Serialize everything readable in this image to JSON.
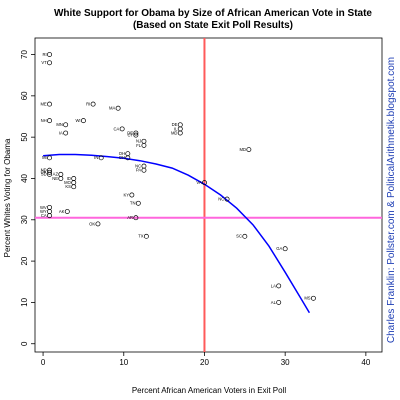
{
  "chart_data": {
    "type": "scatter",
    "title": "White Support for Obama by Size of African American Vote in State",
    "subtitle": "(Based on State Exit Poll Results)",
    "xlabel": "Percent African American Voters in Exit Poll",
    "ylabel": "Percent Whites Voting for Obama",
    "xlim": [
      -1,
      42
    ],
    "ylim": [
      -2,
      74
    ],
    "xticks": [
      "0",
      "10",
      "20",
      "30",
      "40"
    ],
    "yticks": [
      "0",
      "10",
      "20",
      "30",
      "40",
      "50",
      "60",
      "70"
    ],
    "grid": false,
    "legend": "none",
    "credit": "Charles Franklin: Pollster.com & PoliticalArithmetik.blogspot.com",
    "colors": {
      "points": "#000000",
      "fit": "#0000ff",
      "vline": "#ff5a5a",
      "hline": "#ff66dd",
      "credit": "#1f3fb5"
    },
    "reference_lines": {
      "x": 20,
      "y": 30.5
    },
    "points": [
      {
        "label": "RI",
        "x": 0.8,
        "y": 70
      },
      {
        "label": "VT",
        "x": 0.8,
        "y": 68
      },
      {
        "label": "ME",
        "x": 0.8,
        "y": 58
      },
      {
        "label": "RI",
        "x": 6.2,
        "y": 58
      },
      {
        "label": "MA",
        "x": 9.3,
        "y": 57
      },
      {
        "label": "NH",
        "x": 0.8,
        "y": 54
      },
      {
        "label": "WI",
        "x": 5.0,
        "y": 54
      },
      {
        "label": "MN",
        "x": 2.8,
        "y": 53
      },
      {
        "label": "IA",
        "x": 2.8,
        "y": 51
      },
      {
        "label": "CA",
        "x": 9.8,
        "y": 52
      },
      {
        "label": "DE",
        "x": 11.5,
        "y": 51
      },
      {
        "label": "CT",
        "x": 11.5,
        "y": 50.5
      },
      {
        "label": "DE",
        "x": 17.0,
        "y": 53
      },
      {
        "label": "IL",
        "x": 17.0,
        "y": 52
      },
      {
        "label": "MD",
        "x": 17.0,
        "y": 51
      },
      {
        "label": "NJ",
        "x": 12.5,
        "y": 49
      },
      {
        "label": "FL",
        "x": 12.5,
        "y": 48
      },
      {
        "label": "MD",
        "x": 25.5,
        "y": 47
      },
      {
        "label": "MI",
        "x": 0.8,
        "y": 45
      },
      {
        "label": "IN",
        "x": 7.2,
        "y": 45
      },
      {
        "label": "OH",
        "x": 10.5,
        "y": 46
      },
      {
        "label": "OH",
        "x": 10.5,
        "y": 45
      },
      {
        "label": "ND",
        "x": 0.8,
        "y": 42
      },
      {
        "label": "OK",
        "x": 0.8,
        "y": 41.5
      },
      {
        "label": "SD",
        "x": 0.8,
        "y": 41
      },
      {
        "label": "AZ",
        "x": 2.2,
        "y": 41
      },
      {
        "label": "NE",
        "x": 2.2,
        "y": 40
      },
      {
        "label": "ID",
        "x": 3.8,
        "y": 40
      },
      {
        "label": "MO",
        "x": 3.8,
        "y": 39
      },
      {
        "label": "KS",
        "x": 3.8,
        "y": 38
      },
      {
        "label": "WV",
        "x": 0.8,
        "y": 33
      },
      {
        "label": "WY",
        "x": 0.8,
        "y": 32
      },
      {
        "label": "CA",
        "x": 0.8,
        "y": 31
      },
      {
        "label": "AK",
        "x": 3.0,
        "y": 32
      },
      {
        "label": "OK",
        "x": 6.8,
        "y": 29
      },
      {
        "label": "NC",
        "x": 12.5,
        "y": 43
      },
      {
        "label": "PA",
        "x": 12.5,
        "y": 42
      },
      {
        "label": "KY",
        "x": 11.0,
        "y": 36
      },
      {
        "label": "TN",
        "x": 11.8,
        "y": 34
      },
      {
        "label": "AR",
        "x": 11.5,
        "y": 30.5
      },
      {
        "label": "TX",
        "x": 12.8,
        "y": 26
      },
      {
        "label": "VA",
        "x": 20.0,
        "y": 39
      },
      {
        "label": "NC",
        "x": 22.8,
        "y": 35
      },
      {
        "label": "SC",
        "x": 25.0,
        "y": 26
      },
      {
        "label": "GA",
        "x": 30.0,
        "y": 23
      },
      {
        "label": "LA",
        "x": 29.2,
        "y": 14
      },
      {
        "label": "MS",
        "x": 33.5,
        "y": 11
      },
      {
        "label": "AL",
        "x": 29.2,
        "y": 10
      }
    ],
    "fit_line": {
      "x": [
        0,
        2,
        4,
        6,
        8,
        10,
        12,
        14,
        16,
        18,
        20,
        22,
        24,
        26,
        28,
        30,
        32,
        33
      ],
      "y": [
        45.5,
        45.8,
        45.8,
        45.6,
        45.3,
        44.9,
        44.3,
        43.5,
        42.5,
        40.8,
        38.6,
        36.0,
        32.8,
        28.8,
        23.6,
        17.3,
        10.8,
        7.5
      ]
    }
  }
}
